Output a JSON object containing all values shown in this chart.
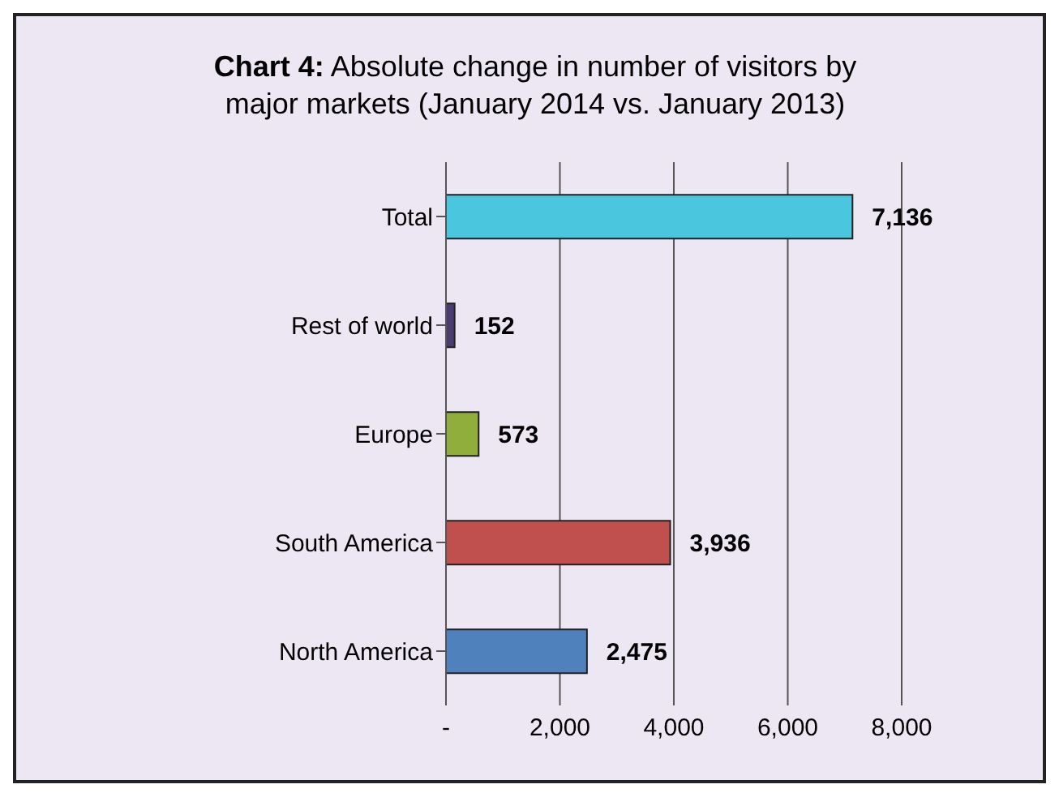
{
  "chart_data": {
    "type": "bar",
    "orientation": "horizontal",
    "title": "Chart 4: Absolute change in number of visitors by major markets (January 2014 vs. January 2013)",
    "categories": [
      "Total",
      "Rest of world",
      "Europe",
      "South America",
      "North America"
    ],
    "values": [
      7136,
      152,
      573,
      3936,
      2475
    ],
    "colors": [
      "#4bc6df",
      "#4a3b70",
      "#8fae3c",
      "#c0504d",
      "#4f81bd"
    ],
    "value_labels": [
      "7,136",
      "152",
      "573",
      "3,936",
      "2,475"
    ],
    "xlim": [
      0,
      8000
    ],
    "xticks": [
      {
        "value": 0,
        "label": "-"
      },
      {
        "value": 2000,
        "label": "2,000"
      },
      {
        "value": 4000,
        "label": "4,000"
      },
      {
        "value": 6000,
        "label": "6,000"
      },
      {
        "value": 8000,
        "label": "8,000"
      }
    ],
    "grid": "x"
  }
}
